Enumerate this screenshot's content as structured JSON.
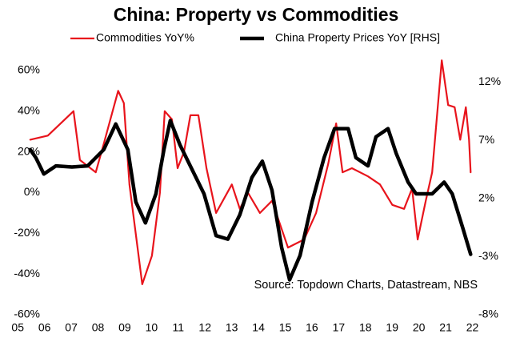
{
  "chart_data": {
    "type": "line",
    "title": "China: Property vs Commodities",
    "source": "Source: Topdown Charts, Datastream, NBS",
    "xlim": [
      4.5,
      22.0
    ],
    "xticks": [
      {
        "value": 5,
        "label": "05"
      },
      {
        "value": 6,
        "label": "06"
      },
      {
        "value": 7,
        "label": "07"
      },
      {
        "value": 8,
        "label": "08"
      },
      {
        "value": 9,
        "label": "09"
      },
      {
        "value": 10,
        "label": "10"
      },
      {
        "value": 11,
        "label": "11"
      },
      {
        "value": 12,
        "label": "12"
      },
      {
        "value": 13,
        "label": "13"
      },
      {
        "value": 14,
        "label": "14"
      },
      {
        "value": 15,
        "label": "15"
      },
      {
        "value": 16,
        "label": "16"
      },
      {
        "value": 17,
        "label": "17"
      },
      {
        "value": 18,
        "label": "18"
      },
      {
        "value": 19,
        "label": "19"
      },
      {
        "value": 20,
        "label": "20"
      },
      {
        "value": 21,
        "label": "21"
      },
      {
        "value": 22,
        "label": "22"
      }
    ],
    "ylim": [
      -60,
      60
    ],
    "yticks": [
      {
        "value": -60,
        "label": "-60%"
      },
      {
        "value": -40,
        "label": "-40%"
      },
      {
        "value": -20,
        "label": "-20%"
      },
      {
        "value": 0,
        "label": "0%"
      },
      {
        "value": 20,
        "label": "20%"
      },
      {
        "value": 40,
        "label": "40%"
      },
      {
        "value": 60,
        "label": "60%"
      }
    ],
    "y2lim": [
      -8,
      13
    ],
    "y2ticks": [
      {
        "value": -8,
        "label": "-8%"
      },
      {
        "value": -3,
        "label": "-3%"
      },
      {
        "value": 2,
        "label": "2%"
      },
      {
        "value": 7,
        "label": "7%"
      },
      {
        "value": 12,
        "label": "12%"
      }
    ],
    "grid": false,
    "series": [
      {
        "name": "Commodities YoY%",
        "color": "#e8141c",
        "width": 2.2,
        "x": [
          5.48,
          6.14,
          7.1,
          7.34,
          7.93,
          8.23,
          8.77,
          8.98,
          9.19,
          9.67,
          10.03,
          10.33,
          10.51,
          10.78,
          10.99,
          11.23,
          11.47,
          11.77,
          12.07,
          12.43,
          13.02,
          13.32,
          13.62,
          14.07,
          14.52,
          15.12,
          15.72,
          16.17,
          16.62,
          16.92,
          17.16,
          17.51,
          18.11,
          18.56,
          19.02,
          19.46,
          19.76,
          19.97,
          20.27,
          20.51,
          20.87,
          21.11,
          21.35,
          21.56,
          21.77,
          21.89,
          21.95
        ],
        "values": [
          26,
          28,
          40,
          16,
          10,
          24,
          50,
          44,
          4,
          -45,
          -31,
          0,
          40,
          36,
          12,
          20,
          38,
          38,
          12,
          -10,
          4,
          -8,
          0,
          -10,
          -4,
          -27,
          -23,
          -10,
          14,
          34,
          10,
          12,
          8,
          4,
          -6,
          -8,
          2,
          -23,
          -4,
          10,
          65,
          43,
          42,
          26,
          42,
          26,
          10
        ]
      },
      {
        "name": "China Property Prices YoY [RHS]",
        "color": "#000000",
        "width": 4.5,
        "axis": "y2",
        "x": [
          5.48,
          5.69,
          5.99,
          6.44,
          7.04,
          7.63,
          8.23,
          8.68,
          9.13,
          9.43,
          9.79,
          10.18,
          10.48,
          10.72,
          11.08,
          11.53,
          11.98,
          12.43,
          12.87,
          13.32,
          13.77,
          14.16,
          14.52,
          14.88,
          15.18,
          15.57,
          16.02,
          16.47,
          16.86,
          17.37,
          17.66,
          18.11,
          18.41,
          18.86,
          19.16,
          19.61,
          19.91,
          20.51,
          20.96,
          21.26,
          21.65,
          21.95
        ],
        "values": [
          6.2,
          5.5,
          4.1,
          4.8,
          4.7,
          4.8,
          6.2,
          8.4,
          6.2,
          1.7,
          -0.1,
          2.4,
          6.2,
          8.7,
          6.6,
          4.5,
          2.4,
          -1.2,
          -1.5,
          0.6,
          3.8,
          5.2,
          2.7,
          -2.2,
          -5.0,
          -2.9,
          1.7,
          5.5,
          8.0,
          8.0,
          5.5,
          4.8,
          7.3,
          8.0,
          5.9,
          3.4,
          2.4,
          2.4,
          3.4,
          2.4,
          -0.5,
          -2.8
        ]
      }
    ]
  }
}
